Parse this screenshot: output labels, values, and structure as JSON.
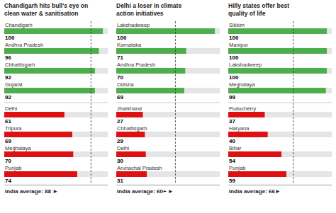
{
  "chart_data": [
    {
      "type": "bar",
      "orientation": "horizontal",
      "title": "Chandigarh hits bull's eye on\nclean water & sanitisation",
      "categories": [
        "Chandigarh",
        "Andhra Pradesh",
        "Chhattisgarh",
        "Gujarat",
        "Delhi",
        "Tripura",
        "Meghalaya",
        "Punjab"
      ],
      "values": [
        100,
        96,
        92,
        92,
        61,
        69,
        70,
        74
      ],
      "colors": [
        "#4caf4c",
        "#4caf4c",
        "#4caf4c",
        "#4caf4c",
        "#dd1111",
        "#dd1111",
        "#dd1111",
        "#dd1111"
      ],
      "xlim": [
        0,
        105
      ],
      "tick_labels": false,
      "data_labels": true,
      "grid": false,
      "average": {
        "value": 88,
        "label": "India average: 88 ►"
      }
    },
    {
      "type": "bar",
      "orientation": "horizontal",
      "title": "Delhi a loser in climate\naction initiatives",
      "categories": [
        "Lakshadweep",
        "Karnataka",
        "Andhra Pradesh",
        "Odisha",
        "Jharkhand",
        "Chhattisgarh",
        "Delhi",
        "Arunachal Pradesh"
      ],
      "values": [
        100,
        71,
        70,
        69,
        27,
        29,
        30,
        31
      ],
      "colors": [
        "#4caf4c",
        "#4caf4c",
        "#4caf4c",
        "#4caf4c",
        "#dd1111",
        "#dd1111",
        "#dd1111",
        "#dd1111"
      ],
      "xlim": [
        0,
        105
      ],
      "tick_labels": false,
      "data_labels": true,
      "grid": false,
      "average": {
        "value": 60,
        "label": "India average: 60+ ►"
      }
    },
    {
      "type": "bar",
      "orientation": "horizontal",
      "title": "Hilly states offer best\nquality of life",
      "categories": [
        "Sikkim",
        "Manipur",
        "Lakshadweep",
        "Meghalaya",
        "Puducherry",
        "Haryana",
        "Bihar",
        "Punjab"
      ],
      "values": [
        100,
        100,
        100,
        99,
        37,
        40,
        54,
        59
      ],
      "colors": [
        "#4caf4c",
        "#4caf4c",
        "#4caf4c",
        "#4caf4c",
        "#dd1111",
        "#dd1111",
        "#dd1111",
        "#dd1111"
      ],
      "xlim": [
        0,
        105
      ],
      "tick_labels": false,
      "data_labels": true,
      "grid": false,
      "average": {
        "value": 66,
        "label": "India average: 66►"
      }
    }
  ]
}
